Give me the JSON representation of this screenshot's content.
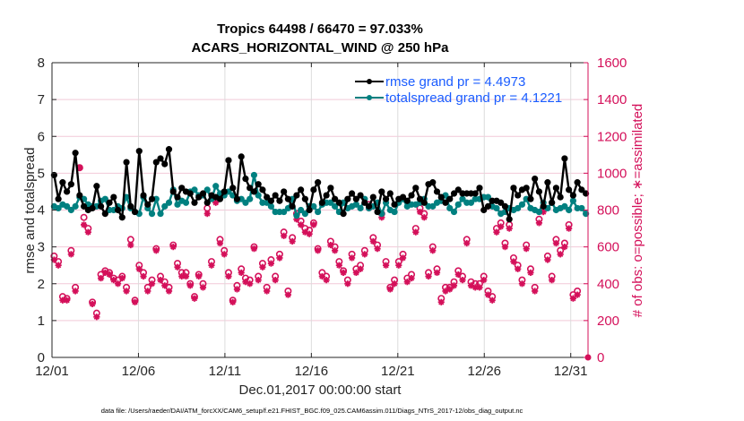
{
  "chart_data": {
    "type": "line",
    "title": "Tropics 64498 / 66470 = 97.033%",
    "subtitle": "ACARS_HORIZONTAL_WIND @ 250 hPa",
    "xlabel": "Dec.01,2017 00:00:00 start",
    "ylabel": "rmse and totalspread",
    "y2label": "# of obs: o=possible; ∗=assimilated",
    "footer": "data file: /Users/raeder/DAI/ATM_forcXX/CAM6_setup/f.e21.FHIST_BGC.f09_025.CAM6assim.011/Diags_NTrS_2017-12/obs_diag_output.nc",
    "xlim": [
      1,
      32
    ],
    "ylim": [
      0,
      8
    ],
    "y2lim": [
      0,
      1600
    ],
    "xticks": [
      1,
      6,
      11,
      16,
      21,
      26,
      31
    ],
    "xtick_labels": [
      "12/01",
      "12/06",
      "12/11",
      "12/16",
      "12/21",
      "12/26",
      "12/31"
    ],
    "yticks": [
      "0",
      "1",
      "2",
      "3",
      "4",
      "5",
      "6",
      "7",
      "8"
    ],
    "y2ticks": [
      "0",
      "200",
      "400",
      "600",
      "800",
      "1000",
      "1200",
      "1400",
      "1600"
    ],
    "grid": true,
    "legend_placement": "top-right",
    "colors": {
      "rmse": "#000000",
      "totalspread": "#008080",
      "obs": "#d4105a",
      "legend_text": "#1a5cff",
      "grid": "#f2c9d8"
    },
    "series": [
      {
        "name": "rmse grand pr = 4.4973",
        "axis": "left",
        "values": [
          4.95,
          4.3,
          4.75,
          4.5,
          4.7,
          5.55,
          4.4,
          4.1,
          4.0,
          4.05,
          4.65,
          4.1,
          3.9,
          4.2,
          4.35,
          4.0,
          3.8,
          5.3,
          4.1,
          3.95,
          5.6,
          4.4,
          4.15,
          4.3,
          5.3,
          5.4,
          5.25,
          5.65,
          4.5,
          4.35,
          4.6,
          4.5,
          4.45,
          4.2,
          4.35,
          4.45,
          4.2,
          4.4,
          4.35,
          4.3,
          4.5,
          5.35,
          4.6,
          4.3,
          5.45,
          4.85,
          4.6,
          4.5,
          4.7,
          4.55,
          4.35,
          4.25,
          4.4,
          4.25,
          4.5,
          4.3,
          4.1,
          4.4,
          4.55,
          4.3,
          4.0,
          4.55,
          4.75,
          4.2,
          4.4,
          4.6,
          4.3,
          4.2,
          3.9,
          4.3,
          4.45,
          4.3,
          4.4,
          4.2,
          4.1,
          4.35,
          3.95,
          4.5,
          4.3,
          4.45,
          4.15,
          4.3,
          4.35,
          4.25,
          4.4,
          4.6,
          4.3,
          4.2,
          4.7,
          4.75,
          4.5,
          4.35,
          4.2,
          4.3,
          4.45,
          4.55,
          4.45,
          4.45,
          4.45,
          4.45,
          4.6,
          4.0,
          4.1,
          4.25,
          4.25,
          4.2,
          4.1,
          3.75,
          4.6,
          4.4,
          4.55,
          4.6,
          4.3,
          4.85,
          4.5,
          4.1,
          4.75,
          4.2,
          4.6,
          4.35,
          5.4,
          4.55,
          4.4,
          4.75,
          4.55,
          4.45
        ],
        "marker": "filled-circle"
      },
      {
        "name": "totalspread grand pr = 4.1221",
        "axis": "left",
        "values": [
          4.1,
          4.05,
          4.15,
          4.1,
          4.0,
          4.1,
          4.35,
          4.3,
          4.15,
          4.1,
          4.1,
          4.25,
          4.3,
          4.0,
          4.0,
          4.1,
          4.05,
          4.35,
          4.05,
          3.95,
          3.9,
          4.35,
          4.05,
          3.9,
          4.3,
          3.9,
          4.1,
          4.2,
          4.55,
          4.15,
          4.25,
          4.2,
          4.5,
          4.55,
          4.4,
          4.4,
          4.55,
          4.3,
          4.65,
          4.45,
          4.4,
          4.5,
          4.4,
          4.25,
          4.3,
          4.2,
          4.3,
          4.95,
          4.4,
          4.2,
          4.2,
          4.1,
          3.95,
          3.95,
          3.95,
          4.05,
          4.3,
          3.85,
          4.0,
          3.9,
          4.1,
          4.1,
          3.95,
          4.15,
          4.2,
          4.2,
          4.1,
          3.95,
          4.2,
          4.05,
          4.1,
          4.15,
          4.05,
          4.3,
          4.05,
          4.1,
          4.2,
          3.9,
          4.2,
          4.0,
          3.95,
          4.2,
          4.3,
          4.1,
          4.15,
          4.15,
          4.2,
          4.3,
          4.1,
          4.1,
          4.2,
          4.25,
          4.4,
          4.05,
          3.95,
          4.15,
          4.3,
          4.2,
          4.2,
          4.3,
          4.3,
          4.35,
          4.35,
          4.1,
          4.05,
          3.9,
          3.95,
          4.05,
          4.0,
          4.05,
          4.15,
          4.3,
          4.05,
          4.0,
          3.95,
          4.2,
          4.05,
          4.2,
          4.0,
          4.05,
          4.1,
          4.0,
          4.25,
          4.05,
          4.05,
          3.9
        ],
        "marker": "filled-circle"
      },
      {
        "name": "# obs possible",
        "axis": "right",
        "marker": "open-circle",
        "values": [
          550,
          520,
          330,
          320,
          580,
          380,
          1030,
          760,
          700,
          300,
          240,
          450,
          470,
          460,
          430,
          420,
          440,
          380,
          640,
          310,
          500,
          460,
          380,
          420,
          590,
          440,
          410,
          380,
          610,
          510,
          460,
          460,
          400,
          330,
          450,
          400,
          810,
          520,
          860,
          640,
          580,
          460,
          310,
          390,
          480,
          430,
          420,
          600,
          440,
          510,
          380,
          530,
          440,
          560,
          680,
          360,
          650,
          780,
          740,
          700,
          690,
          730,
          590,
          460,
          440,
          630,
          600,
          520,
          470,
          420,
          560,
          480,
          500,
          580,
          830,
          650,
          610,
          780,
          520,
          380,
          420,
          520,
          560,
          430,
          450,
          700,
          810,
          780,
          460,
          600,
          480,
          320,
          380,
          380,
          410,
          470,
          440,
          640,
          410,
          400,
          400,
          440,
          360,
          330,
          700,
          730,
          620,
          720,
          540,
          500,
          420,
          610,
          480,
          380,
          750,
          810,
          550,
          440,
          640,
          580,
          620,
          720,
          340,
          360
        ]
      },
      {
        "name": "# obs assimilated",
        "axis": "right",
        "marker": "asterisk",
        "values": [
          530,
          500,
          310,
          310,
          560,
          360,
          1030,
          720,
          680,
          290,
          220,
          430,
          460,
          450,
          420,
          400,
          430,
          360,
          610,
          300,
          480,
          440,
          360,
          400,
          580,
          420,
          390,
          360,
          600,
          490,
          440,
          440,
          390,
          320,
          440,
          380,
          780,
          500,
          840,
          620,
          560,
          440,
          300,
          370,
          460,
          410,
          400,
          590,
          420,
          490,
          360,
          510,
          420,
          540,
          660,
          340,
          630,
          750,
          720,
          680,
          670,
          720,
          580,
          440,
          420,
          610,
          580,
          500,
          460,
          400,
          540,
          460,
          480,
          560,
          810,
          630,
          590,
          760,
          500,
          370,
          400,
          500,
          540,
          410,
          430,
          680,
          790,
          760,
          440,
          580,
          460,
          300,
          360,
          370,
          390,
          450,
          420,
          620,
          390,
          380,
          380,
          420,
          340,
          310,
          680,
          710,
          600,
          700,
          520,
          480,
          400,
          590,
          460,
          360,
          730,
          790,
          530,
          420,
          620,
          560,
          600,
          700,
          320,
          340
        ]
      }
    ]
  }
}
